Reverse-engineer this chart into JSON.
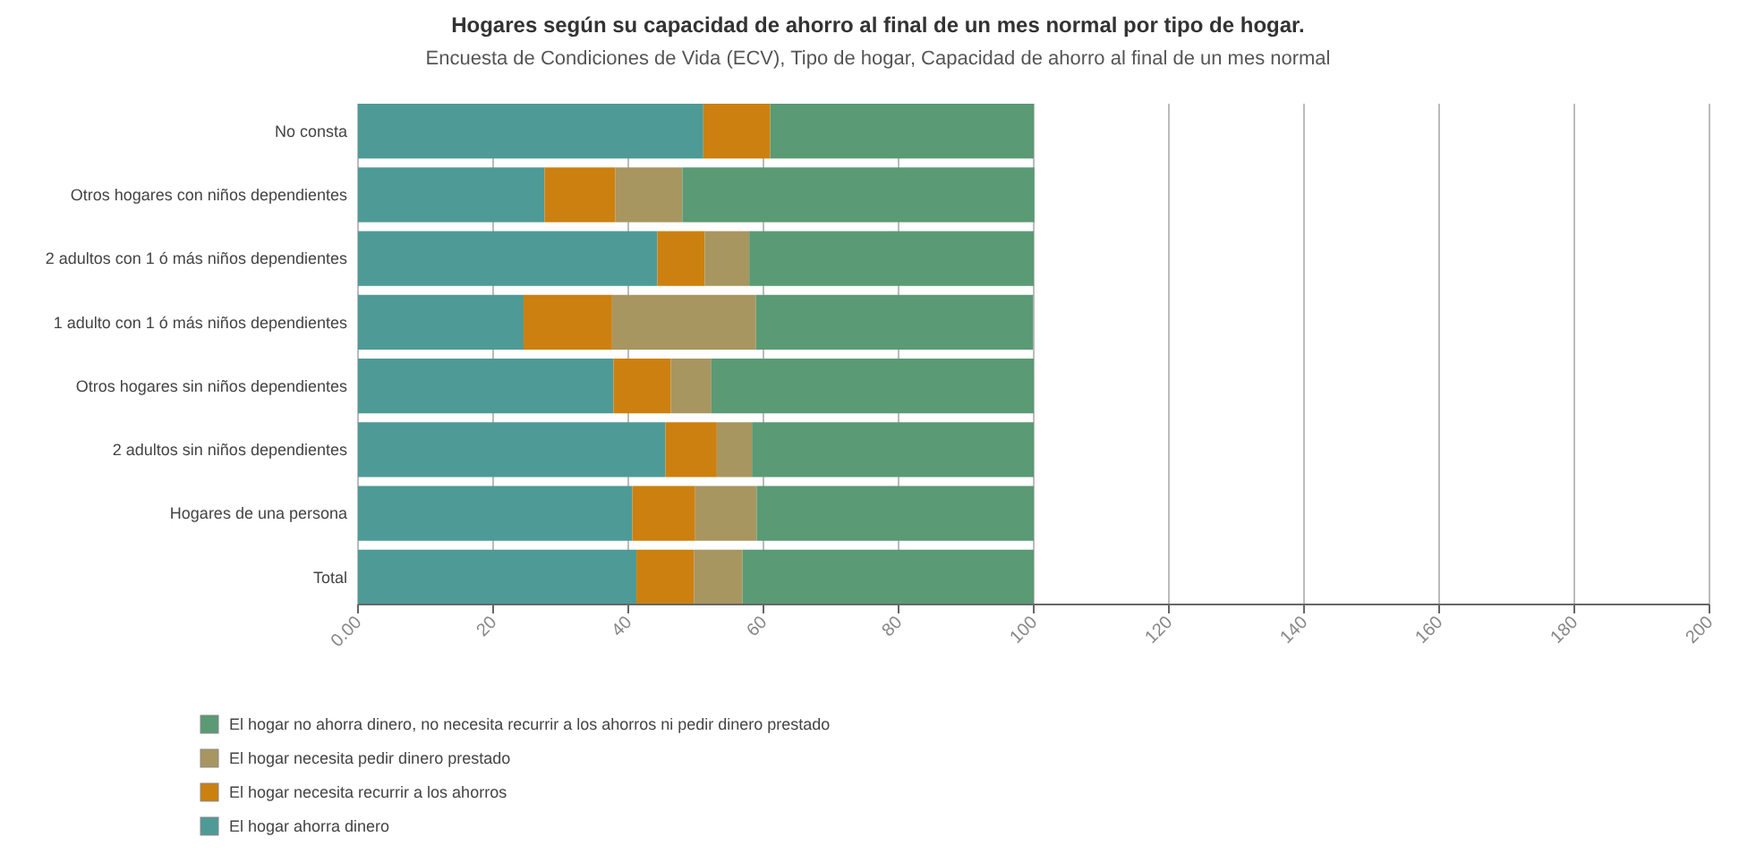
{
  "chart_data": {
    "type": "bar",
    "orientation": "horizontal",
    "stacked": true,
    "title": "Hogares según su capacidad de ahorro al final de un mes normal por tipo de hogar.",
    "subtitle": "Encuesta de Condiciones de Vida (ECV), Tipo de hogar, Capacidad de ahorro al final de un mes normal",
    "categories": [
      "No consta",
      "Otros hogares con niños dependientes",
      "2 adultos con 1 ó más niños dependientes",
      "1 adulto con 1 ó más niños dependientes",
      "Otros hogares sin niños dependientes",
      "2 adultos sin niños dependientes",
      "Hogares de una persona",
      "Total"
    ],
    "series": [
      {
        "name": "El hogar ahorra dinero",
        "color": "#4e9a96",
        "values": [
          51.1,
          27.6,
          44.3,
          24.5,
          37.8,
          45.5,
          40.6,
          41.2
        ]
      },
      {
        "name": "El hogar necesita recurrir a los ahorros",
        "color": "#cc8010",
        "values": [
          9.9,
          10.5,
          7.0,
          13.1,
          8.5,
          7.6,
          9.3,
          8.5
        ]
      },
      {
        "name": "El hogar necesita pedir dinero prestado",
        "color": "#a89660",
        "values": [
          0,
          9.9,
          6.6,
          21.3,
          6.0,
          5.2,
          9.1,
          7.2
        ]
      },
      {
        "name": "El hogar no ahorra dinero, no necesita recurrir a los ahorros ni pedir dinero prestado",
        "color": "#5a9a74",
        "values": [
          39.0,
          52.1,
          42.1,
          41.0,
          47.7,
          41.7,
          41.0,
          43.1
        ]
      }
    ],
    "xlim": [
      0,
      200
    ],
    "xticks": [
      {
        "value": 0,
        "label": "0.00"
      },
      20,
      40,
      60,
      80,
      100,
      120,
      140,
      160,
      180,
      200
    ],
    "grid": "x",
    "legend": "bottom left"
  }
}
